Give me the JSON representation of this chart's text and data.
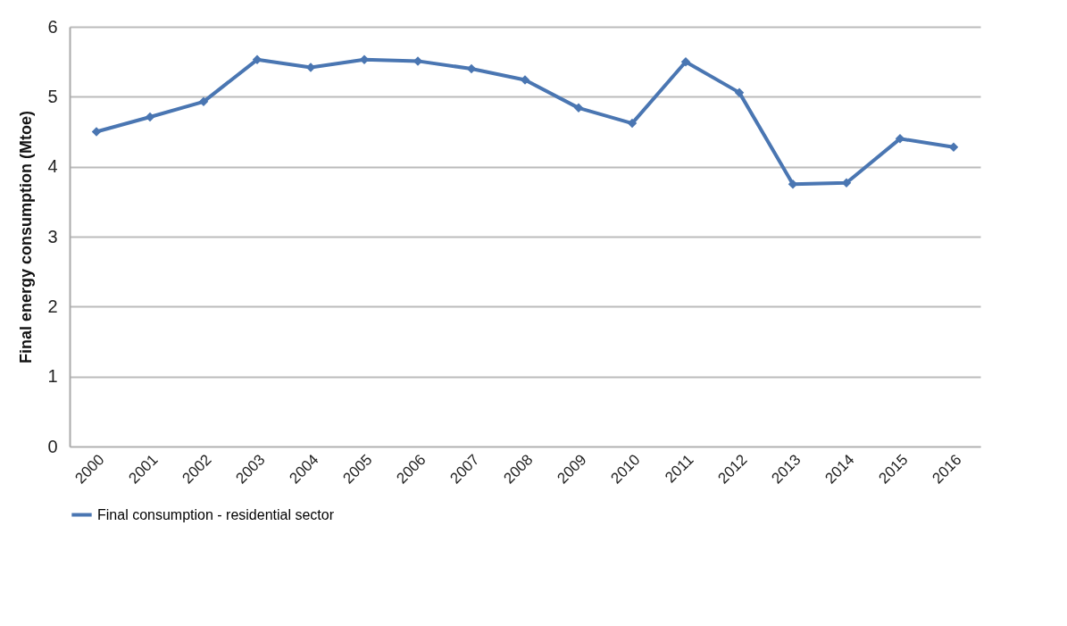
{
  "chart_data": {
    "type": "line",
    "ylabel": "Final energy consumption  (Mtoe)",
    "categories": [
      "2000",
      "2001",
      "2002",
      "2003",
      "2004",
      "2005",
      "2006",
      "2007",
      "2008",
      "2009",
      "2010",
      "2011",
      "2012",
      "2013",
      "2014",
      "2015",
      "2016"
    ],
    "series": [
      {
        "name": "Final consumption - residential sector",
        "color": "#4a76b2",
        "values": [
          4.5,
          4.71,
          4.93,
          5.53,
          5.42,
          5.53,
          5.51,
          5.4,
          5.24,
          4.84,
          4.62,
          5.5,
          5.06,
          3.75,
          3.77,
          4.4,
          4.28
        ]
      }
    ],
    "ylim": [
      0,
      6
    ],
    "yticks": [
      0,
      1,
      2,
      3,
      4,
      5,
      6
    ],
    "grid": "y",
    "legend": "bottom",
    "marker": "diamond",
    "line_style": "solid"
  }
}
